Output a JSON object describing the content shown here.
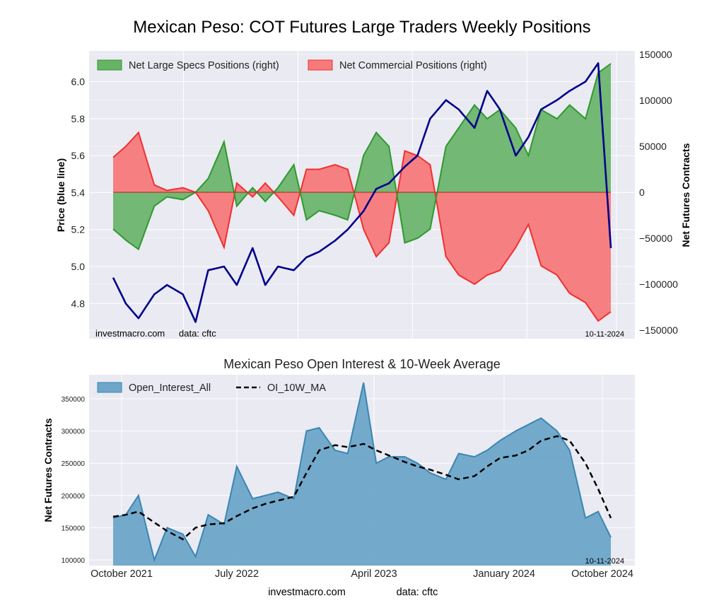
{
  "title": "Mexican Peso: COT Futures Large Traders Weekly Positions",
  "colors": {
    "background": "#eaeaf2",
    "grid": "#ffffff",
    "price_line": "#00008b",
    "specs_fill": "#66b366",
    "specs_line": "#2e9a2e",
    "comm_fill": "#f77a7a",
    "comm_line": "#f03030",
    "oi_fill": "#6da6c8",
    "oi_line": "#3a86b2",
    "ma_line": "#000000"
  },
  "footer": {
    "site": "investmacro.com",
    "source": "data: cftc"
  },
  "chart_data": [
    {
      "type": "area",
      "title": "Mexican Peso: COT Futures Large Traders Weekly Positions",
      "ylabel_left": "Price (blue line)",
      "ylabel_right": "Net Futures Contracts",
      "ylim_left": [
        4.66,
        6.14
      ],
      "ylim_right": [
        -150000,
        150000
      ],
      "yticks_left": [
        "4.8",
        "5.0",
        "5.2",
        "5.4",
        "5.6",
        "5.8",
        "6.0"
      ],
      "yticks_right": [
        "−150000",
        "−100000",
        "−50000",
        "0",
        "50000",
        "100000",
        "150000"
      ],
      "legend_position": "top",
      "watermark": "investmacro.com",
      "source_note": "data: cftc",
      "date_note": "10-11-2024",
      "series": [
        {
          "name": "Net Large Specs Positions (right)",
          "axis": "right",
          "x": [
            0,
            4,
            8,
            13,
            17,
            22,
            26,
            30,
            35,
            39,
            44,
            48,
            52,
            57,
            61,
            65,
            70,
            74,
            79,
            83,
            87,
            92,
            96,
            100,
            105,
            109,
            114,
            118,
            122,
            127,
            131,
            135,
            140,
            144,
            149,
            153,
            157
          ],
          "values": [
            -40000,
            -52000,
            -62000,
            -15000,
            -5000,
            -8000,
            0,
            15000,
            55000,
            -15000,
            5000,
            -10000,
            5000,
            30000,
            -30000,
            -20000,
            -25000,
            -30000,
            40000,
            65000,
            50000,
            -55000,
            -50000,
            -40000,
            50000,
            70000,
            95000,
            80000,
            90000,
            70000,
            40000,
            90000,
            80000,
            95000,
            80000,
            130000,
            140000
          ]
        },
        {
          "name": "Net Commercial Positions (right)",
          "axis": "right",
          "x": [
            0,
            4,
            8,
            13,
            17,
            22,
            26,
            30,
            35,
            39,
            44,
            48,
            52,
            57,
            61,
            65,
            70,
            74,
            79,
            83,
            87,
            92,
            96,
            100,
            105,
            109,
            114,
            118,
            122,
            127,
            131,
            135,
            140,
            144,
            149,
            153,
            157
          ],
          "values": [
            38000,
            50000,
            65000,
            8000,
            2000,
            5000,
            0,
            -20000,
            -60000,
            10000,
            -5000,
            10000,
            -5000,
            -25000,
            25000,
            25000,
            30000,
            25000,
            -40000,
            -70000,
            -55000,
            45000,
            40000,
            30000,
            -70000,
            -90000,
            -100000,
            -90000,
            -85000,
            -60000,
            -35000,
            -80000,
            -90000,
            -110000,
            -120000,
            -140000,
            -130000
          ]
        },
        {
          "name": "Price",
          "axis": "left",
          "x": [
            0,
            4,
            8,
            13,
            17,
            22,
            26,
            30,
            35,
            39,
            44,
            48,
            52,
            57,
            61,
            65,
            70,
            74,
            79,
            83,
            87,
            92,
            96,
            100,
            105,
            109,
            114,
            118,
            122,
            127,
            131,
            135,
            140,
            144,
            149,
            153,
            157
          ],
          "values": [
            4.94,
            4.8,
            4.72,
            4.85,
            4.9,
            4.85,
            4.7,
            4.98,
            5.0,
            4.9,
            5.1,
            4.9,
            5.0,
            4.98,
            5.05,
            5.08,
            5.14,
            5.2,
            5.3,
            5.42,
            5.45,
            5.54,
            5.6,
            5.8,
            5.9,
            5.85,
            5.75,
            5.95,
            5.85,
            5.6,
            5.7,
            5.85,
            5.9,
            5.95,
            6.0,
            6.1,
            5.1
          ]
        }
      ]
    },
    {
      "type": "area",
      "title": "Mexican Peso Open Interest & 10-Week Average",
      "ylabel": "Net Futures Contracts",
      "ylim": [
        92000,
        385000
      ],
      "yticks": [
        "100000",
        "150000",
        "200000",
        "250000",
        "300000",
        "350000"
      ],
      "xticks": [
        "October 2021",
        "July 2022",
        "April 2023",
        "January 2024",
        "October 2024"
      ],
      "legend_position": "top-left",
      "date_note": "10-11-2024",
      "series": [
        {
          "name": "Open_Interest_All",
          "x": [
            0,
            4,
            8,
            13,
            17,
            22,
            26,
            30,
            35,
            39,
            44,
            48,
            52,
            57,
            61,
            65,
            70,
            74,
            79,
            83,
            87,
            92,
            96,
            100,
            105,
            109,
            114,
            118,
            122,
            127,
            131,
            135,
            140,
            144,
            149,
            153,
            157
          ],
          "values": [
            165000,
            170000,
            200000,
            100000,
            150000,
            140000,
            105000,
            170000,
            155000,
            245000,
            195000,
            200000,
            205000,
            195000,
            300000,
            305000,
            270000,
            265000,
            375000,
            250000,
            260000,
            260000,
            250000,
            235000,
            225000,
            265000,
            260000,
            270000,
            285000,
            300000,
            310000,
            320000,
            300000,
            270000,
            165000,
            175000,
            135000
          ]
        },
        {
          "name": "OI_10W_MA",
          "x": [
            0,
            4,
            8,
            13,
            17,
            22,
            26,
            30,
            35,
            39,
            44,
            48,
            52,
            57,
            61,
            65,
            70,
            74,
            79,
            83,
            87,
            92,
            96,
            100,
            105,
            109,
            114,
            118,
            122,
            127,
            131,
            135,
            140,
            144,
            149,
            153,
            157
          ],
          "values": [
            167000,
            170000,
            175000,
            158000,
            145000,
            132000,
            150000,
            155000,
            157000,
            168000,
            180000,
            187000,
            192000,
            198000,
            235000,
            270000,
            278000,
            275000,
            280000,
            270000,
            262000,
            252000,
            245000,
            240000,
            232000,
            225000,
            230000,
            245000,
            258000,
            262000,
            270000,
            285000,
            292000,
            285000,
            250000,
            210000,
            165000
          ]
        }
      ]
    }
  ]
}
